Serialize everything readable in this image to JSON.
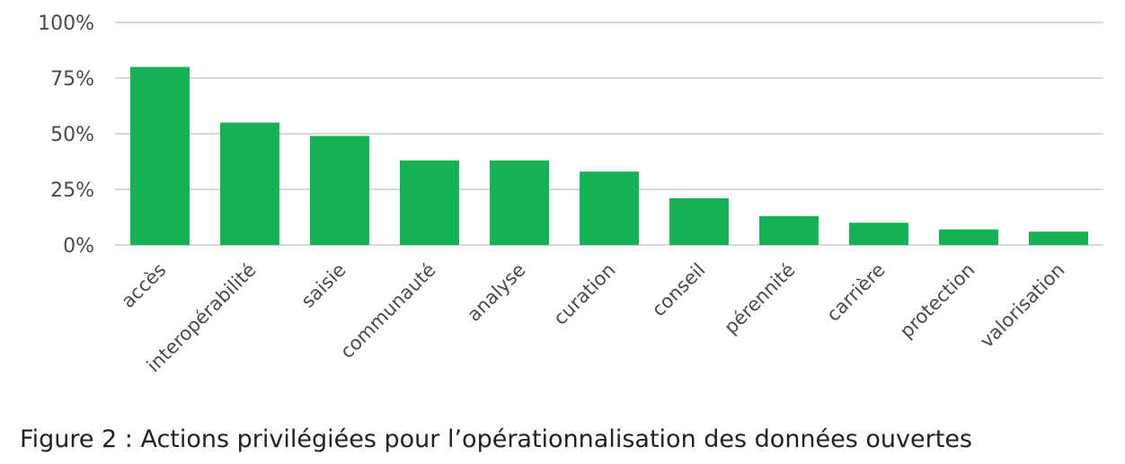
{
  "figure": {
    "caption": "Figure 2 : Actions privilégiées pour l’opérationnalisation des données ouvertes"
  },
  "colors": {
    "bar": "#17b054",
    "grid": "#d9d9d9",
    "text": "#4a4a4a"
  },
  "chart_data": {
    "type": "bar",
    "title": "",
    "xlabel": "",
    "ylabel": "",
    "categories": [
      "accès",
      "interopérabilité",
      "saisie",
      "communauté",
      "analyse",
      "curation",
      "conseil",
      "pérennité",
      "carrière",
      "protection",
      "valorisation"
    ],
    "values": [
      80,
      55,
      49,
      38,
      38,
      33,
      21,
      13,
      10,
      7,
      6
    ],
    "ylim": [
      0,
      100
    ],
    "yticks": [
      0,
      25,
      50,
      75,
      100
    ],
    "ytick_labels": [
      "0%",
      "25%",
      "50%",
      "75%",
      "100%"
    ],
    "grid": true,
    "legend": "none"
  }
}
